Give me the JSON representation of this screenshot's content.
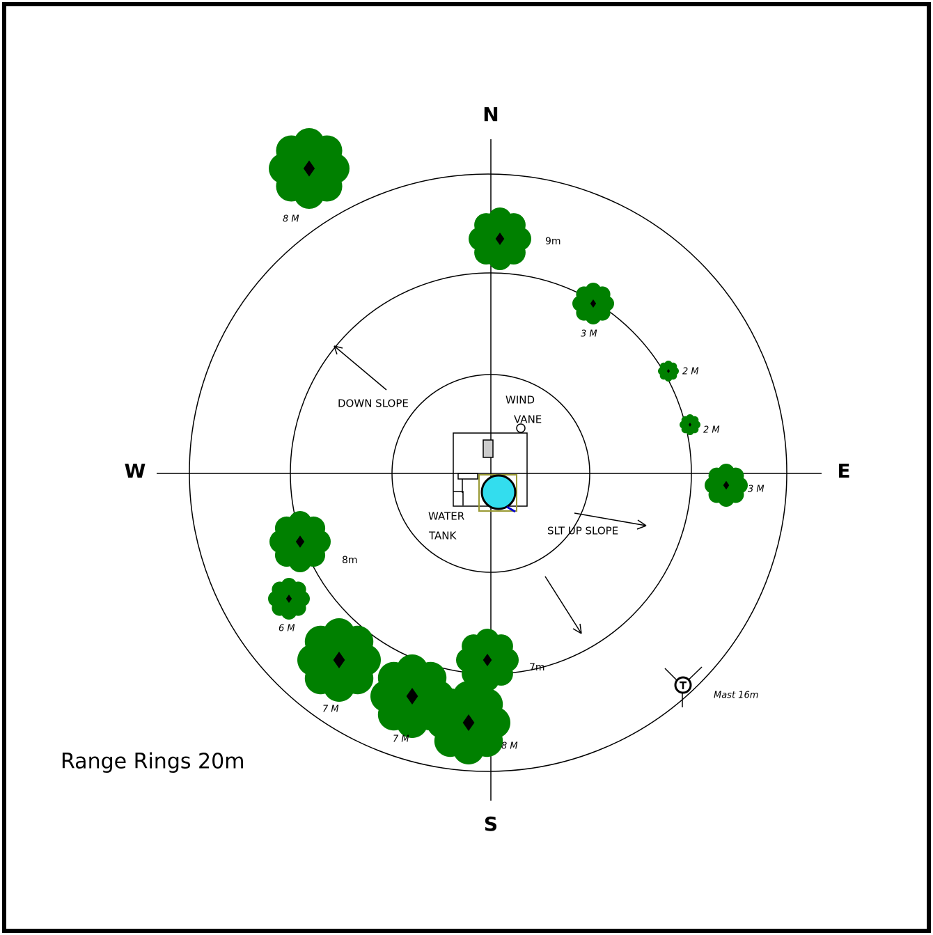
{
  "compass": {
    "north": "N",
    "south": "S",
    "east": "E",
    "west": "W"
  },
  "tree_labels": [
    "8 M",
    "9m",
    "3 M",
    "2 M",
    "2 M",
    "3 M",
    "8m",
    "6 M",
    "7 M",
    "7 M",
    "8 M",
    "7m"
  ],
  "annotations": {
    "down_slope": "DOWN SLOPE",
    "wind_vane": [
      "WIND",
      "VANE"
    ],
    "water_tank": [
      "WATER",
      "TANK"
    ],
    "up_slope": "SLT UP SLOPE",
    "mast": "Mast 16m"
  },
  "legend": "Range Rings 20m"
}
